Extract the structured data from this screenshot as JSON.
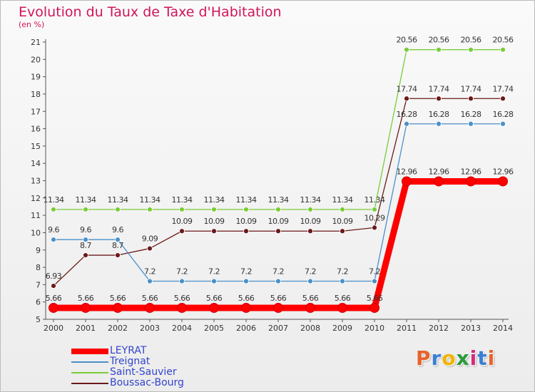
{
  "header": {
    "title": "Evolution du Taux de Taxe d'Habitation",
    "subtitle": "(en %)"
  },
  "logo": {
    "text": "Proxiti",
    "letter_colors": [
      "#e8622a",
      "#3a7fd5",
      "#f2b400",
      "#2a9a3a",
      "#d62a7a",
      "#3a7fd5",
      "#e8622a"
    ]
  },
  "chart_data": {
    "type": "line",
    "x": [
      2000,
      2001,
      2002,
      2003,
      2004,
      2005,
      2006,
      2007,
      2008,
      2009,
      2010,
      2011,
      2012,
      2013,
      2014
    ],
    "ylim": [
      5,
      21
    ],
    "yticks": [
      5,
      6,
      7,
      8,
      9,
      10,
      11,
      12,
      13,
      14,
      15,
      16,
      17,
      18,
      19,
      20,
      21
    ],
    "grid": false,
    "legend_position": "bottom-left",
    "series": [
      {
        "name": "LEYRAT",
        "color": "#ff0000",
        "values": [
          5.66,
          5.66,
          5.66,
          5.66,
          5.66,
          5.66,
          5.66,
          5.66,
          5.66,
          5.66,
          5.66,
          12.96,
          12.96,
          12.96,
          12.96
        ],
        "labels": [
          "5.66",
          "5.66",
          "5.66",
          "5.66",
          "5.66",
          "5.66",
          "5.66",
          "5.66",
          "5.66",
          "5.66",
          "5.66",
          "12.96",
          "12.96",
          "12.96",
          "12.96"
        ]
      },
      {
        "name": "Treignat",
        "color": "#4a90c8",
        "values": [
          9.6,
          9.6,
          9.6,
          7.2,
          7.2,
          7.2,
          7.2,
          7.2,
          7.2,
          7.2,
          7.2,
          16.28,
          16.28,
          16.28,
          16.28
        ],
        "labels": [
          "9.6",
          "9.6",
          "9.6",
          "7.2",
          "7.2",
          "7.2",
          "7.2",
          "7.2",
          "7.2",
          "7.2",
          "7.2",
          "16.28",
          "16.28",
          "16.28",
          "16.28"
        ]
      },
      {
        "name": "Saint-Sauvier",
        "color": "#7acc3a",
        "values": [
          11.34,
          11.34,
          11.34,
          11.34,
          11.34,
          11.34,
          11.34,
          11.34,
          11.34,
          11.34,
          11.34,
          20.56,
          20.56,
          20.56,
          20.56
        ],
        "labels": [
          "11.34",
          "11.34",
          "11.34",
          "11.34",
          "11.34",
          "11.34",
          "11.34",
          "11.34",
          "11.34",
          "11.34",
          "11.34",
          "20.56",
          "20.56",
          "20.56",
          "20.56"
        ]
      },
      {
        "name": "Boussac-Bourg",
        "color": "#6b1a1a",
        "values": [
          6.93,
          8.7,
          8.7,
          9.09,
          10.09,
          10.09,
          10.09,
          10.09,
          10.09,
          10.09,
          10.29,
          17.74,
          17.74,
          17.74,
          17.74
        ],
        "labels": [
          "6.93",
          "8.7",
          "8.7",
          "9.09",
          "10.09",
          "10.09",
          "10.09",
          "10.09",
          "10.09",
          "10.09",
          "10.29",
          "17.74",
          "17.74",
          "17.74",
          "17.74"
        ]
      }
    ]
  }
}
